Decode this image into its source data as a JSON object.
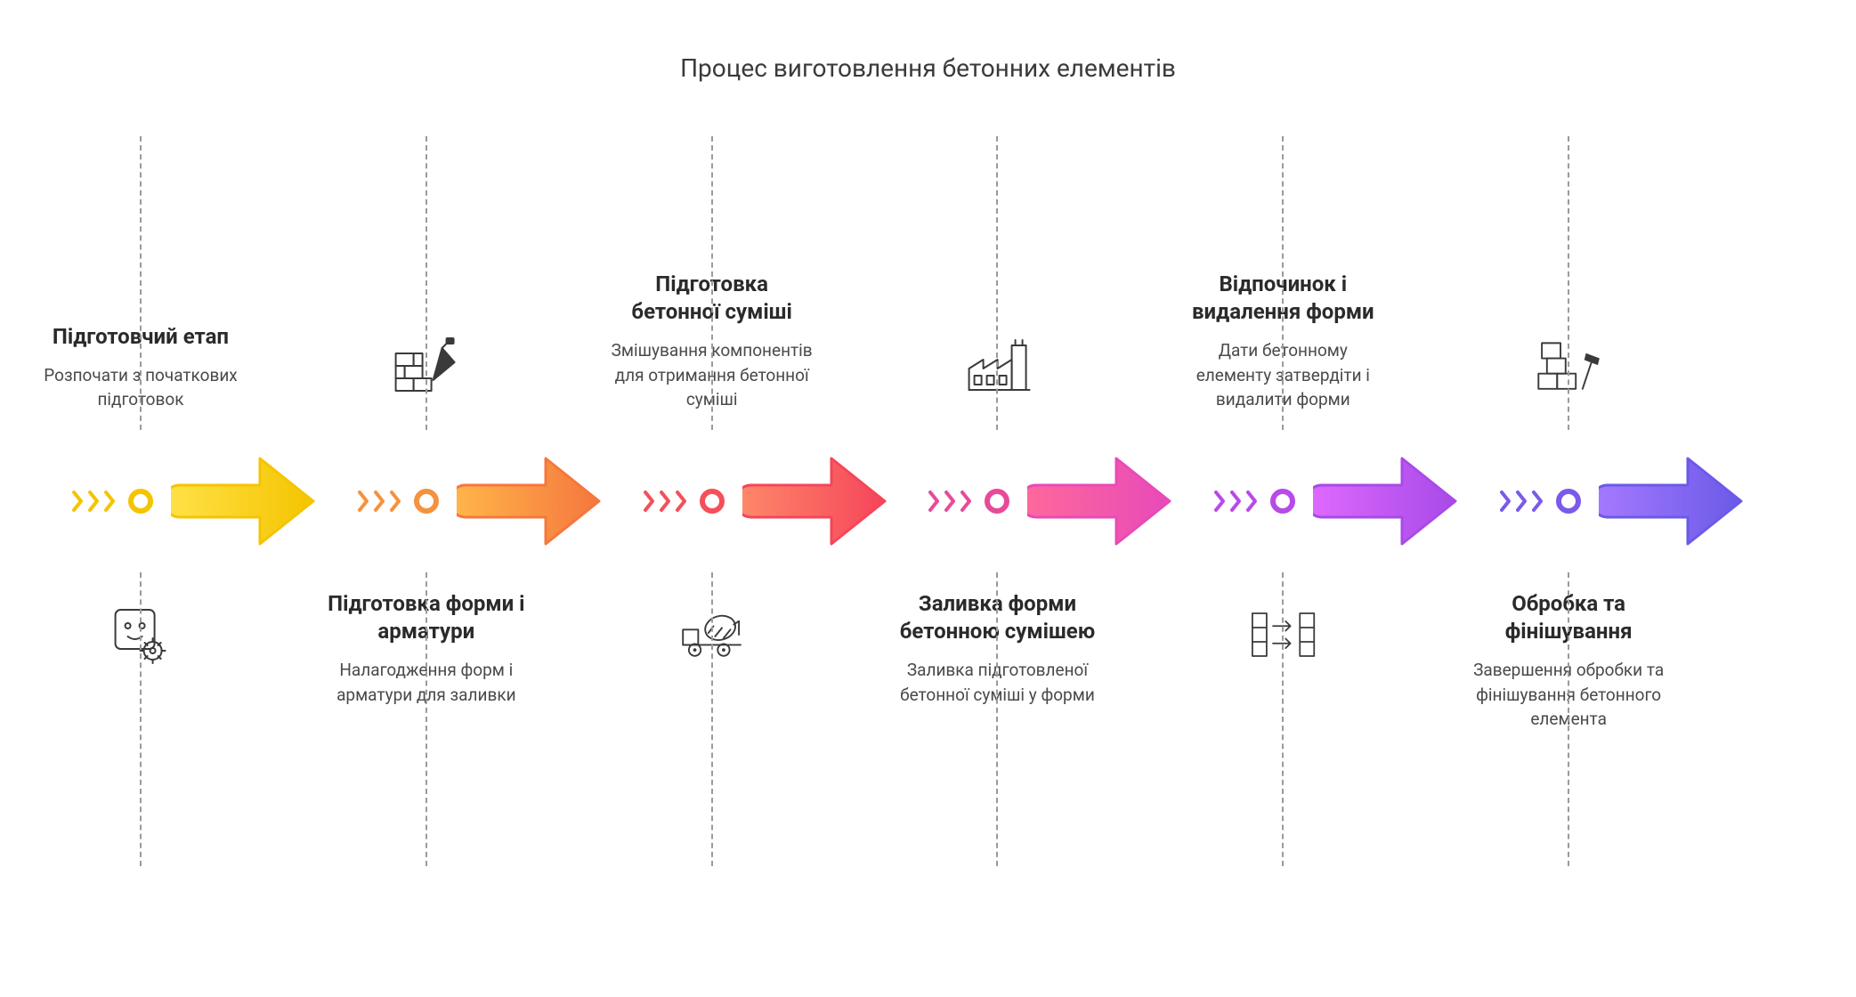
{
  "title": "Процес виготовлення бетонних елементів",
  "steps": [
    {
      "title": "Підготовчий етап",
      "desc": "Розпочати з початкових підготовок",
      "text_position": "top",
      "icon": "gear-plug",
      "color_light": "#ffe24a",
      "color_dark": "#f5c400",
      "gradient_from": "#ffe24a",
      "gradient_to": "#f5c400"
    },
    {
      "title": "Підготовка форми і арматури",
      "desc": "Налагодження форм і арматури для заливки",
      "text_position": "bottom",
      "icon": "brick-trowel",
      "color_light": "#ffb84a",
      "color_dark": "#f5923e",
      "gradient_from": "#ffb84a",
      "gradient_to": "#f5773e"
    },
    {
      "title": "Підготовка бетонної суміші",
      "desc": "Змішування компонентів для отримання бетонної суміші",
      "text_position": "top",
      "icon": "mixer-truck",
      "color_light": "#ff7a6a",
      "color_dark": "#f54f5a",
      "gradient_from": "#ff8a6a",
      "gradient_to": "#f5455a"
    },
    {
      "title": "Заливка форми бетонною сумішею",
      "desc": "Заливка підготовленої бетонної суміші у форми",
      "text_position": "bottom",
      "icon": "factory",
      "color_light": "#ff6ab8",
      "color_dark": "#e84a9a",
      "gradient_from": "#ff6a9a",
      "gradient_to": "#e84ab8"
    },
    {
      "title": "Відпочинок і видалення форми",
      "desc": "Дати бетонному елементу затвердіти і видалити форми",
      "text_position": "top",
      "icon": "separate-boxes",
      "color_light": "#d96aff",
      "color_dark": "#b84ae8",
      "gradient_from": "#e06aff",
      "gradient_to": "#a84ae8"
    },
    {
      "title": "Обробка та фінішування",
      "desc": "Завершення обробки та фінішування бетонного елемента",
      "text_position": "bottom",
      "icon": "blocks-hammer",
      "color_light": "#9a7aff",
      "color_dark": "#7a5ae8",
      "gradient_from": "#a87aff",
      "gradient_to": "#6a5ae8"
    }
  ],
  "styling": {
    "background_color": "#ffffff",
    "title_color": "#3a3a3a",
    "title_fontsize": 28,
    "step_title_fontsize": 24,
    "step_desc_fontsize": 19,
    "step_title_color": "#2a2a2a",
    "step_desc_color": "#4a4a4a",
    "connector_color": "#9a9a9a",
    "icon_stroke": "#3a3a3a",
    "icon_stroke_width": 2,
    "arrow_stroke_width": 3,
    "chevron_count": 3,
    "node_circle_diameter": 28,
    "node_circle_border": 6
  },
  "type": "process-flow-infographic"
}
